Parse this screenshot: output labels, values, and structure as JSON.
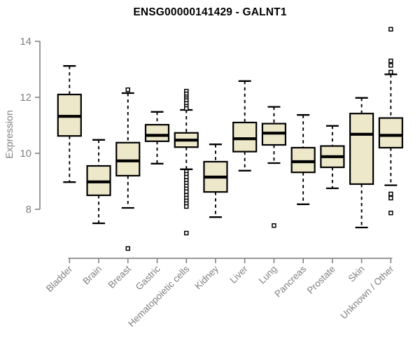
{
  "chart_data": {
    "type": "boxplot",
    "title": "ENSG00000141429 - GALNT1",
    "ylabel": "Expression",
    "xlabel": "",
    "ylim": [
      6.5,
      14.5
    ],
    "y_ticks": [
      8,
      10,
      12,
      14
    ],
    "grid": false,
    "whisker_style": "dashed",
    "categories": [
      "Bladder",
      "Brain",
      "Breast",
      "Gastric",
      "Hematopoietic cells",
      "Kidney",
      "Liver",
      "Lung",
      "Pancreas",
      "Prostate",
      "Skin",
      "Unknown / Other"
    ],
    "boxes": [
      {
        "category": "Bladder",
        "low": 8.97,
        "q1": 10.62,
        "median": 11.32,
        "q3": 12.1,
        "high": 13.12,
        "outliers": []
      },
      {
        "category": "Brain",
        "low": 7.5,
        "q1": 8.5,
        "median": 8.98,
        "q3": 9.55,
        "high": 10.48,
        "outliers": []
      },
      {
        "category": "Breast",
        "low": 8.05,
        "q1": 9.2,
        "median": 9.73,
        "q3": 10.38,
        "high": 12.15,
        "outliers": [
          12.27,
          6.6
        ]
      },
      {
        "category": "Gastric",
        "low": 9.63,
        "q1": 10.43,
        "median": 10.64,
        "q3": 11.02,
        "high": 11.48,
        "outliers": []
      },
      {
        "category": "Hematopoietic cells",
        "low": 9.43,
        "q1": 10.22,
        "median": 10.47,
        "q3": 10.73,
        "high": 11.55,
        "outliers": [
          12.22,
          12.12,
          12.02,
          11.95,
          11.88,
          11.78,
          11.68,
          11.6,
          9.35,
          9.25,
          9.15,
          9.03,
          8.93,
          8.83,
          8.73,
          8.63,
          8.5,
          8.4,
          8.3,
          8.2,
          8.1,
          7.15
        ]
      },
      {
        "category": "Kidney",
        "low": 7.72,
        "q1": 8.62,
        "median": 9.15,
        "q3": 9.7,
        "high": 10.32,
        "outliers": []
      },
      {
        "category": "Liver",
        "low": 9.38,
        "q1": 10.06,
        "median": 10.52,
        "q3": 11.1,
        "high": 12.58,
        "outliers": []
      },
      {
        "category": "Lung",
        "low": 9.65,
        "q1": 10.3,
        "median": 10.72,
        "q3": 11.06,
        "high": 11.66,
        "outliers": [
          7.42
        ]
      },
      {
        "category": "Pancreas",
        "low": 8.18,
        "q1": 9.32,
        "median": 9.7,
        "q3": 10.2,
        "high": 11.37,
        "outliers": []
      },
      {
        "category": "Prostate",
        "low": 8.75,
        "q1": 9.5,
        "median": 9.88,
        "q3": 10.26,
        "high": 10.98,
        "outliers": []
      },
      {
        "category": "Skin",
        "low": 7.35,
        "q1": 8.9,
        "median": 10.68,
        "q3": 11.42,
        "high": 11.98,
        "outliers": []
      },
      {
        "category": "Unknown / Other",
        "low": 8.86,
        "q1": 10.2,
        "median": 10.64,
        "q3": 11.26,
        "high": 12.82,
        "outliers": [
          14.43,
          13.3,
          13.14,
          12.9,
          8.55,
          8.4,
          7.87
        ]
      }
    ],
    "colors": {
      "box_fill": "#EDE8CA",
      "box_border": "#000000",
      "median": "#000000",
      "whisker": "#000000",
      "outlier": "#000000",
      "axis": "#898989",
      "tick_text": "#808080",
      "title_text": "#000000"
    }
  }
}
